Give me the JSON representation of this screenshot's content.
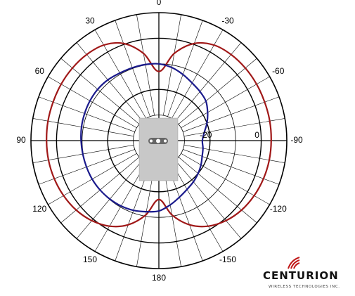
{
  "chart_data": {
    "type": "polar",
    "title": "",
    "angular_axis": {
      "tick_labels": [
        {
          "angle": 0,
          "label": "0"
        },
        {
          "angle": 30,
          "label": "30"
        },
        {
          "angle": 60,
          "label": "60"
        },
        {
          "angle": 90,
          "label": "90"
        },
        {
          "angle": 120,
          "label": "120"
        },
        {
          "angle": 150,
          "label": "150"
        },
        {
          "angle": 180,
          "label": "180"
        },
        {
          "angle": -150,
          "label": "-150"
        },
        {
          "angle": -120,
          "label": "-120"
        },
        {
          "angle": -90,
          "label": "-90"
        },
        {
          "angle": -60,
          "label": "-60"
        },
        {
          "angle": -30,
          "label": "-30"
        }
      ],
      "minor_spoke_step_deg": 10,
      "clockwise_positive": false
    },
    "radial_axis": {
      "unit": "dB",
      "range": [
        -40,
        10
      ],
      "rings": [
        -30,
        -20,
        -10,
        0,
        10
      ],
      "ring_labels": [
        {
          "value": -20,
          "label": "-20"
        },
        {
          "value": 0,
          "label": "0"
        }
      ]
    },
    "series": [
      {
        "color": "#a01818",
        "points": [
          {
            "angle": 0,
            "value": -13
          },
          {
            "angle": 10,
            "value": -5.4
          },
          {
            "angle": 20,
            "value": 0.4
          },
          {
            "angle": 30,
            "value": 3.1
          },
          {
            "angle": 40,
            "value": 3.9
          },
          {
            "angle": 50,
            "value": 4.1
          },
          {
            "angle": 60,
            "value": 4.1
          },
          {
            "angle": 70,
            "value": 4.0
          },
          {
            "angle": 80,
            "value": 4.0
          },
          {
            "angle": 90,
            "value": 3.9
          },
          {
            "angle": 100,
            "value": 3.8
          },
          {
            "angle": 110,
            "value": 3.5
          },
          {
            "angle": 120,
            "value": 3.0
          },
          {
            "angle": 130,
            "value": 2.2
          },
          {
            "angle": 140,
            "value": 0.8
          },
          {
            "angle": 150,
            "value": -1.4
          },
          {
            "angle": 160,
            "value": -5.0
          },
          {
            "angle": 170,
            "value": -10.5
          },
          {
            "angle": 180,
            "value": -17
          },
          {
            "angle": -170,
            "value": -10.5
          },
          {
            "angle": -160,
            "value": -5.0
          },
          {
            "angle": -150,
            "value": -1.4
          },
          {
            "angle": -140,
            "value": 0.8
          },
          {
            "angle": -130,
            "value": 2.2
          },
          {
            "angle": -120,
            "value": 3.0
          },
          {
            "angle": -110,
            "value": 3.5
          },
          {
            "angle": -100,
            "value": 3.8
          },
          {
            "angle": -90,
            "value": 3.9
          },
          {
            "angle": -80,
            "value": 4.0
          },
          {
            "angle": -70,
            "value": 4.0
          },
          {
            "angle": -60,
            "value": 4.1
          },
          {
            "angle": -50,
            "value": 4.1
          },
          {
            "angle": -40,
            "value": 3.9
          },
          {
            "angle": -30,
            "value": 3.1
          },
          {
            "angle": -20,
            "value": 0.4
          },
          {
            "angle": -10,
            "value": -5.4
          }
        ]
      },
      {
        "color": "#1a1a8c",
        "points": [
          {
            "angle": 0,
            "value": -10
          },
          {
            "angle": 10,
            "value": -9.8
          },
          {
            "angle": 20,
            "value": -9.7
          },
          {
            "angle": 30,
            "value": -9.5
          },
          {
            "angle": 40,
            "value": -9.0
          },
          {
            "angle": 50,
            "value": -8.8
          },
          {
            "angle": 60,
            "value": -8.9
          },
          {
            "angle": 70,
            "value": -9.1
          },
          {
            "angle": 80,
            "value": -9.3
          },
          {
            "angle": 90,
            "value": -9.6
          },
          {
            "angle": 100,
            "value": -9.8
          },
          {
            "angle": 110,
            "value": -9.9
          },
          {
            "angle": 120,
            "value": -9.9
          },
          {
            "angle": 130,
            "value": -10.0
          },
          {
            "angle": 140,
            "value": -10.2
          },
          {
            "angle": 150,
            "value": -10.5
          },
          {
            "angle": 160,
            "value": -11.0
          },
          {
            "angle": 170,
            "value": -11.8
          },
          {
            "angle": 180,
            "value": -12.5
          },
          {
            "angle": -170,
            "value": -14.5
          },
          {
            "angle": -160,
            "value": -16.5
          },
          {
            "angle": -150,
            "value": -18.0
          },
          {
            "angle": -140,
            "value": -19.0
          },
          {
            "angle": -130,
            "value": -20.0
          },
          {
            "angle": -120,
            "value": -21.0
          },
          {
            "angle": -110,
            "value": -22.0
          },
          {
            "angle": -100,
            "value": -22.5
          },
          {
            "angle": -90,
            "value": -23.0
          },
          {
            "angle": -80,
            "value": -22.0
          },
          {
            "angle": -70,
            "value": -20.0
          },
          {
            "angle": -60,
            "value": -18.0
          },
          {
            "angle": -50,
            "value": -16.0
          },
          {
            "angle": -40,
            "value": -15.0
          },
          {
            "angle": -30,
            "value": -14.0
          },
          {
            "angle": -20,
            "value": -12.5
          },
          {
            "angle": -10,
            "value": -11.0
          }
        ]
      }
    ],
    "grid": true,
    "inset": {
      "shape": "rectangle",
      "color": "#c8c8c8",
      "feed_colors": [
        "#666666",
        "#ffffff"
      ]
    },
    "colors": {
      "grid": "#000000",
      "background": "#ffffff"
    }
  },
  "logo": {
    "name": "CENTURION",
    "tagline": "WIRELESS TECHNOLOGIES INC.",
    "icon": "wireless-signal-icon",
    "accent_color": "#c01818"
  }
}
